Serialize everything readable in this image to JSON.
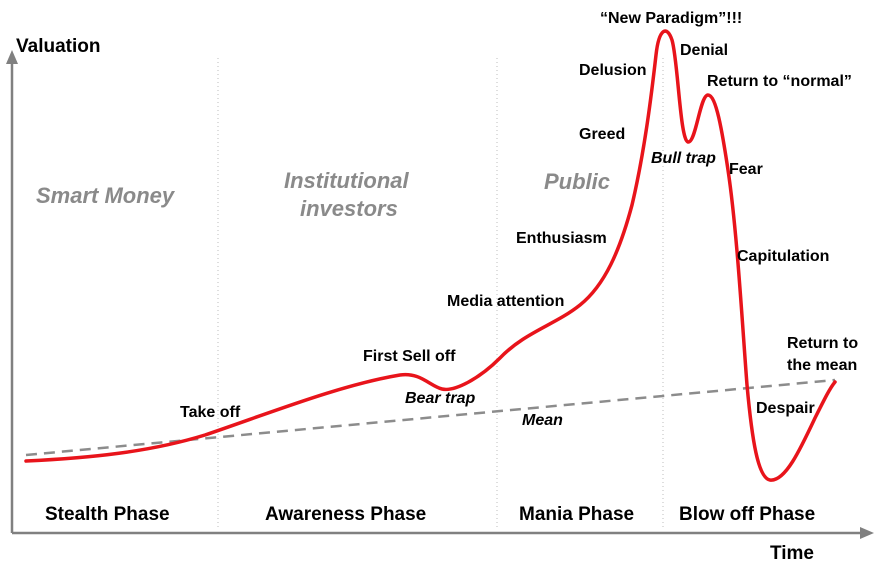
{
  "axes": {
    "y_label": "Valuation",
    "x_label": "Time"
  },
  "groups": {
    "smart_money": "Smart Money",
    "institutional_line1": "Institutional",
    "institutional_line2": "investors",
    "public": "Public"
  },
  "phases": {
    "stealth": "Stealth Phase",
    "awareness": "Awareness Phase",
    "mania": "Mania Phase",
    "blowoff": "Blow off Phase"
  },
  "labels": {
    "take_off": "Take off",
    "first_sell_off": "First Sell off",
    "bear_trap": "Bear trap",
    "mean": "Mean",
    "media_attention": "Media attention",
    "enthusiasm": "Enthusiasm",
    "greed": "Greed",
    "delusion": "Delusion",
    "new_paradigm": "“New Paradigm”!!!",
    "denial": "Denial",
    "bull_trap": "Bull trap",
    "return_to_normal": "Return to “normal”",
    "fear": "Fear",
    "capitulation": "Capitulation",
    "return_to_the_mean_line1": "Return to",
    "return_to_the_mean_line2": "the mean",
    "despair": "Despair"
  },
  "colors": {
    "curve": "#e8141b",
    "mean_line": "#8c8c8c",
    "axis": "#808080",
    "divider": "#c8c8c8",
    "group_text": "#8a8a8a"
  }
}
